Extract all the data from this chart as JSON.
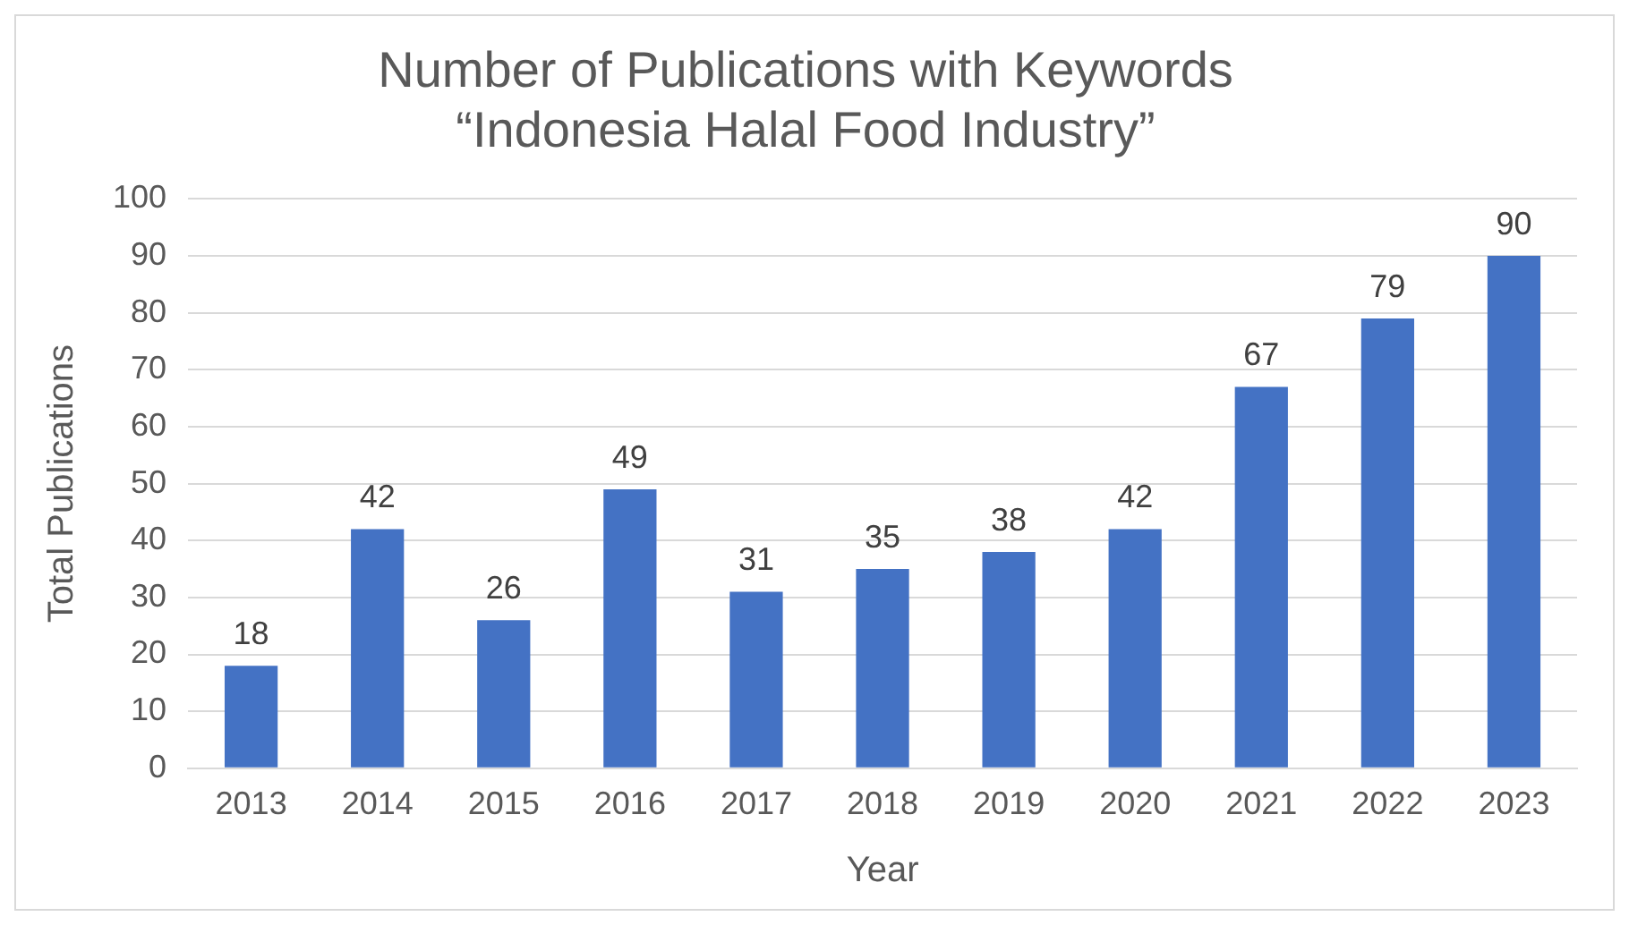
{
  "chart_data": {
    "type": "bar",
    "title": "Number of Publications with Keywords\n“Indonesia Halal Food Industry”",
    "xlabel": "Year",
    "ylabel": "Total Publications",
    "categories": [
      "2013",
      "2014",
      "2015",
      "2016",
      "2017",
      "2018",
      "2019",
      "2020",
      "2021",
      "2022",
      "2023"
    ],
    "values": [
      18,
      42,
      26,
      49,
      31,
      35,
      38,
      42,
      67,
      79,
      90
    ],
    "color": "#4472c4",
    "ylim": [
      0,
      100
    ],
    "yticks": [
      0,
      10,
      20,
      30,
      40,
      50,
      60,
      70,
      80,
      90,
      100
    ],
    "grid": "y",
    "data_labels": true,
    "legend": false
  }
}
